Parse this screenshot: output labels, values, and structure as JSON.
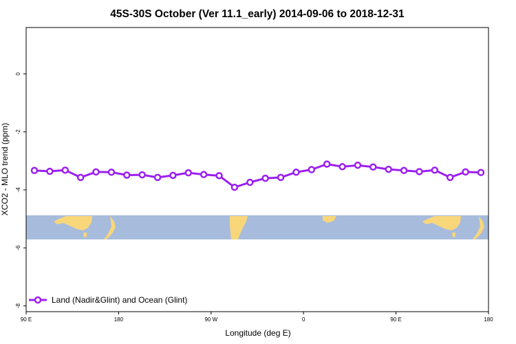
{
  "chart_data": {
    "type": "line",
    "title": "45S-30S October (Ver 11.1_early)   2014-09-06 to 2018-12-31",
    "xlabel": "Longitude (deg E)",
    "ylabel": "XCO2 - MLO trend (ppm)",
    "x_tick_labels": [
      "90 E",
      "180",
      "90 W",
      "0",
      "90 E",
      "180"
    ],
    "y_ticks": [
      0,
      -2,
      -4,
      -6,
      -8
    ],
    "ylim": [
      -8.2,
      1.6
    ],
    "grid": false,
    "legend_position": "bottom-left",
    "line_color": "#9b1ff0",
    "map_strip": {
      "lat_range": "45S-30S",
      "ocean_color": "#a7bcdc",
      "land_color": "#f8d67a"
    },
    "series": [
      {
        "name": "Land (Nadir&Glint) and Ocean (Glint)",
        "values": [
          -3.33,
          -3.36,
          -3.32,
          -3.57,
          -3.38,
          -3.39,
          -3.49,
          -3.48,
          -3.57,
          -3.5,
          -3.41,
          -3.47,
          -3.51,
          -3.91,
          -3.74,
          -3.6,
          -3.57,
          -3.39,
          -3.3,
          -3.11,
          -3.2,
          -3.15,
          -3.21,
          -3.29,
          -3.33,
          -3.37,
          -3.32,
          -3.57,
          -3.38,
          -3.4
        ]
      }
    ]
  }
}
